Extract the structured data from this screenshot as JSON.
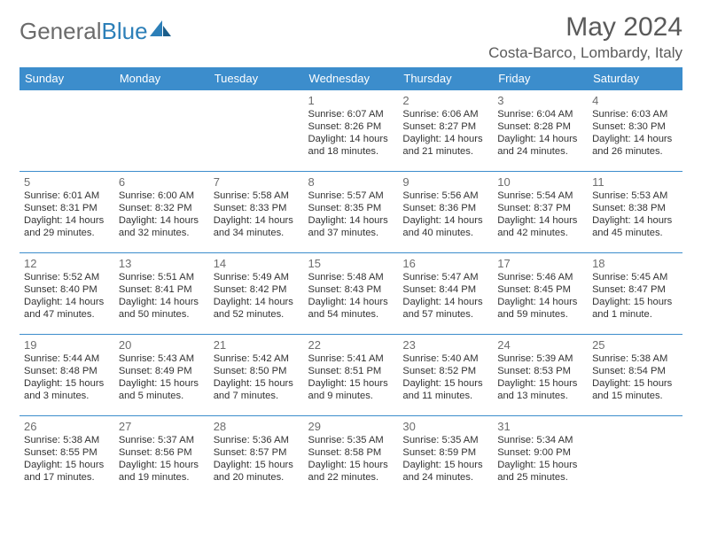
{
  "logo": {
    "textGray": "General",
    "textBlue": "Blue"
  },
  "title": "May 2024",
  "location": "Costa-Barco, Lombardy, Italy",
  "colors": {
    "headerBg": "#3c8dcc",
    "headerText": "#ffffff",
    "rule": "#3c8dcc",
    "bodyText": "#333333",
    "titleText": "#5a5a5a",
    "logoGray": "#6b6b6b",
    "logoBlue": "#2c7fb8",
    "background": "#ffffff"
  },
  "dayNames": [
    "Sunday",
    "Monday",
    "Tuesday",
    "Wednesday",
    "Thursday",
    "Friday",
    "Saturday"
  ],
  "weeks": [
    [
      null,
      null,
      null,
      {
        "d": "1",
        "sr": "Sunrise: 6:07 AM",
        "ss": "Sunset: 8:26 PM",
        "dl1": "Daylight: 14 hours",
        "dl2": "and 18 minutes."
      },
      {
        "d": "2",
        "sr": "Sunrise: 6:06 AM",
        "ss": "Sunset: 8:27 PM",
        "dl1": "Daylight: 14 hours",
        "dl2": "and 21 minutes."
      },
      {
        "d": "3",
        "sr": "Sunrise: 6:04 AM",
        "ss": "Sunset: 8:28 PM",
        "dl1": "Daylight: 14 hours",
        "dl2": "and 24 minutes."
      },
      {
        "d": "4",
        "sr": "Sunrise: 6:03 AM",
        "ss": "Sunset: 8:30 PM",
        "dl1": "Daylight: 14 hours",
        "dl2": "and 26 minutes."
      }
    ],
    [
      {
        "d": "5",
        "sr": "Sunrise: 6:01 AM",
        "ss": "Sunset: 8:31 PM",
        "dl1": "Daylight: 14 hours",
        "dl2": "and 29 minutes."
      },
      {
        "d": "6",
        "sr": "Sunrise: 6:00 AM",
        "ss": "Sunset: 8:32 PM",
        "dl1": "Daylight: 14 hours",
        "dl2": "and 32 minutes."
      },
      {
        "d": "7",
        "sr": "Sunrise: 5:58 AM",
        "ss": "Sunset: 8:33 PM",
        "dl1": "Daylight: 14 hours",
        "dl2": "and 34 minutes."
      },
      {
        "d": "8",
        "sr": "Sunrise: 5:57 AM",
        "ss": "Sunset: 8:35 PM",
        "dl1": "Daylight: 14 hours",
        "dl2": "and 37 minutes."
      },
      {
        "d": "9",
        "sr": "Sunrise: 5:56 AM",
        "ss": "Sunset: 8:36 PM",
        "dl1": "Daylight: 14 hours",
        "dl2": "and 40 minutes."
      },
      {
        "d": "10",
        "sr": "Sunrise: 5:54 AM",
        "ss": "Sunset: 8:37 PM",
        "dl1": "Daylight: 14 hours",
        "dl2": "and 42 minutes."
      },
      {
        "d": "11",
        "sr": "Sunrise: 5:53 AM",
        "ss": "Sunset: 8:38 PM",
        "dl1": "Daylight: 14 hours",
        "dl2": "and 45 minutes."
      }
    ],
    [
      {
        "d": "12",
        "sr": "Sunrise: 5:52 AM",
        "ss": "Sunset: 8:40 PM",
        "dl1": "Daylight: 14 hours",
        "dl2": "and 47 minutes."
      },
      {
        "d": "13",
        "sr": "Sunrise: 5:51 AM",
        "ss": "Sunset: 8:41 PM",
        "dl1": "Daylight: 14 hours",
        "dl2": "and 50 minutes."
      },
      {
        "d": "14",
        "sr": "Sunrise: 5:49 AM",
        "ss": "Sunset: 8:42 PM",
        "dl1": "Daylight: 14 hours",
        "dl2": "and 52 minutes."
      },
      {
        "d": "15",
        "sr": "Sunrise: 5:48 AM",
        "ss": "Sunset: 8:43 PM",
        "dl1": "Daylight: 14 hours",
        "dl2": "and 54 minutes."
      },
      {
        "d": "16",
        "sr": "Sunrise: 5:47 AM",
        "ss": "Sunset: 8:44 PM",
        "dl1": "Daylight: 14 hours",
        "dl2": "and 57 minutes."
      },
      {
        "d": "17",
        "sr": "Sunrise: 5:46 AM",
        "ss": "Sunset: 8:45 PM",
        "dl1": "Daylight: 14 hours",
        "dl2": "and 59 minutes."
      },
      {
        "d": "18",
        "sr": "Sunrise: 5:45 AM",
        "ss": "Sunset: 8:47 PM",
        "dl1": "Daylight: 15 hours",
        "dl2": "and 1 minute."
      }
    ],
    [
      {
        "d": "19",
        "sr": "Sunrise: 5:44 AM",
        "ss": "Sunset: 8:48 PM",
        "dl1": "Daylight: 15 hours",
        "dl2": "and 3 minutes."
      },
      {
        "d": "20",
        "sr": "Sunrise: 5:43 AM",
        "ss": "Sunset: 8:49 PM",
        "dl1": "Daylight: 15 hours",
        "dl2": "and 5 minutes."
      },
      {
        "d": "21",
        "sr": "Sunrise: 5:42 AM",
        "ss": "Sunset: 8:50 PM",
        "dl1": "Daylight: 15 hours",
        "dl2": "and 7 minutes."
      },
      {
        "d": "22",
        "sr": "Sunrise: 5:41 AM",
        "ss": "Sunset: 8:51 PM",
        "dl1": "Daylight: 15 hours",
        "dl2": "and 9 minutes."
      },
      {
        "d": "23",
        "sr": "Sunrise: 5:40 AM",
        "ss": "Sunset: 8:52 PM",
        "dl1": "Daylight: 15 hours",
        "dl2": "and 11 minutes."
      },
      {
        "d": "24",
        "sr": "Sunrise: 5:39 AM",
        "ss": "Sunset: 8:53 PM",
        "dl1": "Daylight: 15 hours",
        "dl2": "and 13 minutes."
      },
      {
        "d": "25",
        "sr": "Sunrise: 5:38 AM",
        "ss": "Sunset: 8:54 PM",
        "dl1": "Daylight: 15 hours",
        "dl2": "and 15 minutes."
      }
    ],
    [
      {
        "d": "26",
        "sr": "Sunrise: 5:38 AM",
        "ss": "Sunset: 8:55 PM",
        "dl1": "Daylight: 15 hours",
        "dl2": "and 17 minutes."
      },
      {
        "d": "27",
        "sr": "Sunrise: 5:37 AM",
        "ss": "Sunset: 8:56 PM",
        "dl1": "Daylight: 15 hours",
        "dl2": "and 19 minutes."
      },
      {
        "d": "28",
        "sr": "Sunrise: 5:36 AM",
        "ss": "Sunset: 8:57 PM",
        "dl1": "Daylight: 15 hours",
        "dl2": "and 20 minutes."
      },
      {
        "d": "29",
        "sr": "Sunrise: 5:35 AM",
        "ss": "Sunset: 8:58 PM",
        "dl1": "Daylight: 15 hours",
        "dl2": "and 22 minutes."
      },
      {
        "d": "30",
        "sr": "Sunrise: 5:35 AM",
        "ss": "Sunset: 8:59 PM",
        "dl1": "Daylight: 15 hours",
        "dl2": "and 24 minutes."
      },
      {
        "d": "31",
        "sr": "Sunrise: 5:34 AM",
        "ss": "Sunset: 9:00 PM",
        "dl1": "Daylight: 15 hours",
        "dl2": "and 25 minutes."
      },
      null
    ]
  ]
}
